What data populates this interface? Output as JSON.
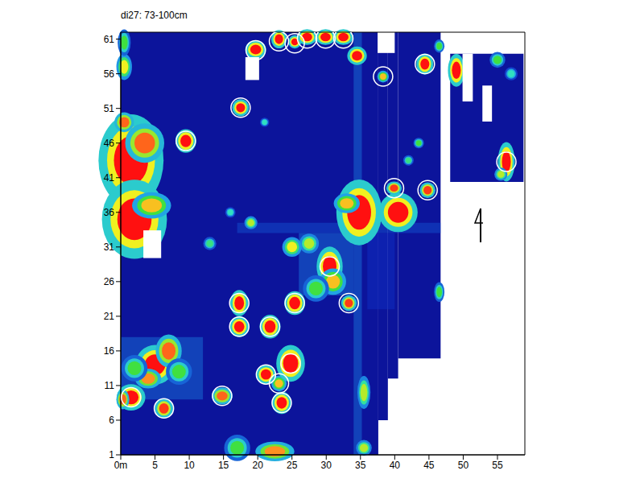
{
  "chart_data": {
    "type": "heatmap",
    "title": "di27: 73-100cm",
    "xlim": [
      0,
      59
    ],
    "ylim": [
      1,
      62
    ],
    "xticks": [
      {
        "value": 0,
        "label": "0m"
      },
      5,
      10,
      15,
      20,
      25,
      30,
      35,
      40,
      45,
      50,
      55
    ],
    "yticks": [
      1,
      6,
      11,
      16,
      21,
      26,
      31,
      36,
      41,
      46,
      51,
      56,
      61
    ],
    "survey_areas": [
      {
        "x1": 0,
        "x2": 37.6,
        "y1": 1,
        "y2": 62,
        "v": 0.05
      },
      {
        "x1": 37.6,
        "x2": 39,
        "y1": 6,
        "y2": 62,
        "v": 0.05
      },
      {
        "x1": 39,
        "x2": 40.5,
        "y1": 12,
        "y2": 62,
        "v": 0.05
      },
      {
        "x1": 40.5,
        "x2": 46.7,
        "y1": 14.9,
        "y2": 62,
        "v": 0.05
      },
      {
        "x1": 48.1,
        "x2": 58.8,
        "y1": 40.4,
        "y2": 58.9,
        "v": 0.05
      }
    ],
    "gaps": [
      {
        "x1": 37.5,
        "x2": 40,
        "y1": 59,
        "y2": 62
      },
      {
        "x1": 3.3,
        "x2": 5.9,
        "y1": 29.4,
        "y2": 33.4
      },
      {
        "x1": 18.2,
        "x2": 20.2,
        "y1": 55.1,
        "y2": 58.4
      },
      {
        "x1": 49.9,
        "x2": 51.4,
        "y1": 52,
        "y2": 58.9
      },
      {
        "x1": 52.8,
        "x2": 54.2,
        "y1": 49.1,
        "y2": 54.3
      }
    ],
    "bands": [
      {
        "x1": 34,
        "x2": 35.2,
        "y1": 1,
        "y2": 62,
        "v": 0.3
      },
      {
        "x1": 17,
        "x2": 46.7,
        "y1": 33,
        "y2": 34.5,
        "v": 0.25
      },
      {
        "x1": 26,
        "x2": 34,
        "y1": 24,
        "y2": 33,
        "v": 0.3
      },
      {
        "x1": 0,
        "x2": 12,
        "y1": 9,
        "y2": 18,
        "v": 0.3
      },
      {
        "x1": 36,
        "x2": 40,
        "y1": 22,
        "y2": 33,
        "v": 0.2
      }
    ],
    "anomalies": [
      {
        "x": 1.5,
        "y": 43.5,
        "w": 5,
        "h": 7,
        "v": 1
      },
      {
        "x": 3.5,
        "y": 46,
        "w": 3,
        "h": 3,
        "v": 0.9
      },
      {
        "x": 2,
        "y": 35,
        "w": 5,
        "h": 6,
        "v": 1
      },
      {
        "x": 4.5,
        "y": 37,
        "w": 3,
        "h": 2,
        "v": 0.8
      },
      {
        "x": 0.5,
        "y": 49,
        "w": 1.5,
        "h": 1.5,
        "v": 0.9
      },
      {
        "x": 0.5,
        "y": 57,
        "w": 1.2,
        "h": 2,
        "v": 0.75
      },
      {
        "x": 0.5,
        "y": 60.5,
        "w": 1,
        "h": 2,
        "v": 0.6
      },
      {
        "x": 5,
        "y": 14,
        "w": 3,
        "h": 3,
        "v": 1
      },
      {
        "x": 7,
        "y": 16,
        "w": 2,
        "h": 2.5,
        "v": 0.9
      },
      {
        "x": 4,
        "y": 12,
        "w": 2,
        "h": 1.5,
        "v": 0.85
      },
      {
        "x": 8.5,
        "y": 13,
        "w": 2,
        "h": 2,
        "v": 0.6
      },
      {
        "x": 2,
        "y": 13.5,
        "w": 2,
        "h": 2,
        "v": 0.6
      },
      {
        "x": 1.5,
        "y": 9.3,
        "w": 2.2,
        "h": 2,
        "v": 1
      },
      {
        "x": 0.3,
        "y": 9,
        "w": 1,
        "h": 1.5,
        "v": 0.9
      },
      {
        "x": 6.3,
        "y": 7.7,
        "w": 1.4,
        "h": 1.5,
        "v": 0.95
      },
      {
        "x": 14.8,
        "y": 9.5,
        "w": 1.6,
        "h": 1.3,
        "v": 0.9
      },
      {
        "x": 21.2,
        "y": 12.6,
        "w": 1.5,
        "h": 1.5,
        "v": 1
      },
      {
        "x": 23.1,
        "y": 11.3,
        "w": 1.2,
        "h": 1.2,
        "v": 0.8
      },
      {
        "x": 23.5,
        "y": 8.5,
        "w": 1.5,
        "h": 1.7,
        "v": 1
      },
      {
        "x": 24.8,
        "y": 14.2,
        "w": 2.2,
        "h": 2.8,
        "v": 1
      },
      {
        "x": 17.3,
        "y": 22.9,
        "w": 1.4,
        "h": 2,
        "v": 1
      },
      {
        "x": 17.3,
        "y": 19.5,
        "w": 1.5,
        "h": 1.6,
        "v": 1
      },
      {
        "x": 21.8,
        "y": 19.5,
        "w": 1.6,
        "h": 1.8,
        "v": 1
      },
      {
        "x": 25.4,
        "y": 22.9,
        "w": 1.6,
        "h": 1.8,
        "v": 1
      },
      {
        "x": 30.5,
        "y": 28.2,
        "w": 2,
        "h": 3,
        "v": 1
      },
      {
        "x": 31,
        "y": 26,
        "w": 2,
        "h": 2,
        "v": 0.8
      },
      {
        "x": 28.5,
        "y": 25,
        "w": 2,
        "h": 2,
        "v": 0.6
      },
      {
        "x": 27.5,
        "y": 31.5,
        "w": 1.5,
        "h": 1.5,
        "v": 0.7
      },
      {
        "x": 33.3,
        "y": 22.9,
        "w": 1.2,
        "h": 1.2,
        "v": 0.95
      },
      {
        "x": 34.8,
        "y": 36,
        "w": 3.5,
        "h": 5,
        "v": 1
      },
      {
        "x": 33,
        "y": 37.3,
        "w": 2,
        "h": 1.5,
        "v": 0.8
      },
      {
        "x": 40.5,
        "y": 36,
        "w": 3,
        "h": 3,
        "v": 1
      },
      {
        "x": 39.9,
        "y": 39.5,
        "w": 1.2,
        "h": 1,
        "v": 0.95
      },
      {
        "x": 44.8,
        "y": 39.2,
        "w": 1.2,
        "h": 1.2,
        "v": 0.95
      },
      {
        "x": 9.5,
        "y": 46.3,
        "w": 1.6,
        "h": 1.8,
        "v": 1
      },
      {
        "x": 17.5,
        "y": 51.1,
        "w": 1.3,
        "h": 1.3,
        "v": 1
      },
      {
        "x": 19.7,
        "y": 59.5,
        "w": 1.6,
        "h": 1.4,
        "v": 1
      },
      {
        "x": 23.1,
        "y": 61,
        "w": 1.2,
        "h": 1.4,
        "v": 1
      },
      {
        "x": 25.4,
        "y": 60.6,
        "w": 1,
        "h": 1,
        "v": 1
      },
      {
        "x": 27.2,
        "y": 61.3,
        "w": 1.5,
        "h": 1.2,
        "v": 1
      },
      {
        "x": 29.9,
        "y": 61.3,
        "w": 1.5,
        "h": 1.2,
        "v": 1
      },
      {
        "x": 32.5,
        "y": 61.3,
        "w": 1.5,
        "h": 1.2,
        "v": 1
      },
      {
        "x": 34.5,
        "y": 58.6,
        "w": 1.5,
        "h": 1.4,
        "v": 1
      },
      {
        "x": 38.3,
        "y": 55.6,
        "w": 0.9,
        "h": 0.9,
        "v": 0.8
      },
      {
        "x": 44.4,
        "y": 57.4,
        "w": 1.3,
        "h": 1.6,
        "v": 1
      },
      {
        "x": 49,
        "y": 56.5,
        "w": 1.3,
        "h": 2.5,
        "v": 1
      },
      {
        "x": 56.3,
        "y": 43.3,
        "w": 1.3,
        "h": 3,
        "v": 1
      },
      {
        "x": 55.5,
        "y": 41.5,
        "w": 1,
        "h": 1,
        "v": 0.7
      },
      {
        "x": 55,
        "y": 58,
        "w": 1.2,
        "h": 1.2,
        "v": 0.6
      },
      {
        "x": 57,
        "y": 56,
        "w": 1,
        "h": 1,
        "v": 0.5
      },
      {
        "x": 17,
        "y": 2,
        "w": 2,
        "h": 2,
        "v": 0.6
      },
      {
        "x": 22.5,
        "y": 1.5,
        "w": 3,
        "h": 1.5,
        "v": 0.85
      },
      {
        "x": 35.5,
        "y": 10,
        "w": 1,
        "h": 2.5,
        "v": 0.7
      },
      {
        "x": 35.5,
        "y": 2,
        "w": 1.2,
        "h": 1.2,
        "v": 0.7
      },
      {
        "x": 46.5,
        "y": 24.5,
        "w": 0.8,
        "h": 1.5,
        "v": 0.6
      },
      {
        "x": 46.5,
        "y": 60,
        "w": 0.8,
        "h": 1,
        "v": 0.6
      },
      {
        "x": 19,
        "y": 34.5,
        "w": 1,
        "h": 1,
        "v": 0.7
      },
      {
        "x": 13,
        "y": 31.5,
        "w": 1,
        "h": 1,
        "v": 0.55
      },
      {
        "x": 25,
        "y": 31,
        "w": 1.5,
        "h": 1.5,
        "v": 0.75
      },
      {
        "x": 16,
        "y": 36,
        "w": 0.8,
        "h": 0.8,
        "v": 0.5
      },
      {
        "x": 43.5,
        "y": 46,
        "w": 0.8,
        "h": 0.8,
        "v": 0.6
      },
      {
        "x": 42,
        "y": 43.5,
        "w": 0.8,
        "h": 0.8,
        "v": 0.55
      },
      {
        "x": 21,
        "y": 49,
        "w": 0.7,
        "h": 0.7,
        "v": 0.5
      }
    ],
    "marked": [
      {
        "x": 1.5,
        "y": 9.3
      },
      {
        "x": 6.3,
        "y": 7.7
      },
      {
        "x": 14.8,
        "y": 9.5
      },
      {
        "x": 21.2,
        "y": 12.6
      },
      {
        "x": 23.1,
        "y": 11.3
      },
      {
        "x": 23.5,
        "y": 8.5
      },
      {
        "x": 24.8,
        "y": 14.2
      },
      {
        "x": 17.3,
        "y": 22.9
      },
      {
        "x": 17.3,
        "y": 19.5
      },
      {
        "x": 21.8,
        "y": 19.5
      },
      {
        "x": 25.4,
        "y": 22.9
      },
      {
        "x": 30.5,
        "y": 28.2
      },
      {
        "x": 33.3,
        "y": 22.9
      },
      {
        "x": 9.5,
        "y": 46.3
      },
      {
        "x": 17.5,
        "y": 51.1
      },
      {
        "x": 19.7,
        "y": 59.4
      },
      {
        "x": 23.1,
        "y": 60.7
      },
      {
        "x": 25.4,
        "y": 60.4
      },
      {
        "x": 27.2,
        "y": 61.1
      },
      {
        "x": 29.9,
        "y": 61.1
      },
      {
        "x": 32.5,
        "y": 61.1
      },
      {
        "x": 38.3,
        "y": 55.6
      },
      {
        "x": 44.4,
        "y": 57.4
      },
      {
        "x": 39.9,
        "y": 39.5
      },
      {
        "x": 44.8,
        "y": 39.2
      },
      {
        "x": 56.3,
        "y": 43.3
      }
    ]
  }
}
